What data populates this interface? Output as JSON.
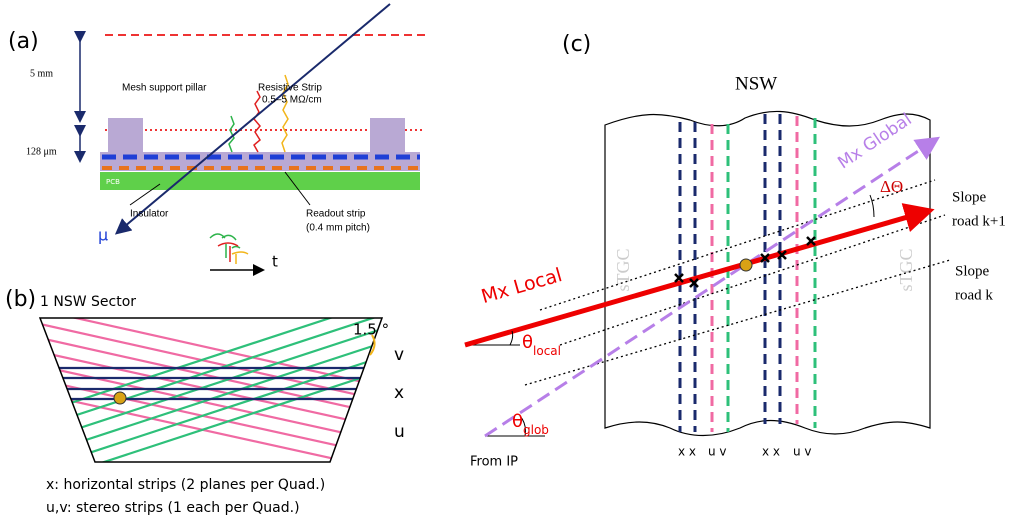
{
  "panel_a": {
    "label": "(a)",
    "dim_5mm": "5 mm",
    "dim_128um": "128 μm",
    "mesh_pillar": "Mesh support pillar",
    "resistive_strip": [
      "Resistive Strip",
      "0.5–5 MΩ/cm"
    ],
    "pcb": "PCB",
    "insulator": "Insulator",
    "readout_strip": [
      "Readout strip",
      "(0.4 mm pitch)"
    ],
    "muon": "μ",
    "time_axis": "t"
  },
  "panel_b": {
    "label": "(b)",
    "title": "1 NSW Sector",
    "angle": "1.5 °",
    "layers": [
      "v",
      "x",
      "u"
    ],
    "notes": [
      "x: horizontal strips (2 planes per Quad.)",
      "u,v: stereo strips (1 each per Quad.)"
    ]
  },
  "panel_c": {
    "label": "(c)",
    "title": "NSW",
    "detector": [
      "sTGC",
      "sTGC"
    ],
    "mx_global": "Mx Global",
    "mx_local": "Mx Local",
    "delta_theta": "ΔΘ",
    "road_k1": [
      "Slope",
      "road k+1"
    ],
    "road_k": [
      "Slope",
      "road k"
    ],
    "theta_local": [
      "θ",
      "local"
    ],
    "theta_glob": [
      "θ",
      "glob"
    ],
    "from_ip": "From IP",
    "planes": [
      "x x",
      "u v",
      "x x",
      "u v"
    ]
  }
}
